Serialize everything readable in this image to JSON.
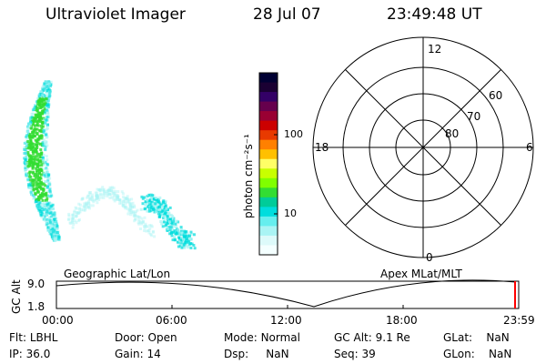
{
  "header": {
    "instrument": "Ultraviolet Imager",
    "date": "28 Jul 07",
    "time": "23:49:48 UT"
  },
  "colorbar": {
    "unit_label": "photon cm⁻²s⁻¹",
    "ticks": [
      "100",
      "10"
    ],
    "colors": [
      "#000033",
      "#1a0033",
      "#330066",
      "#66004d",
      "#990033",
      "#cc0000",
      "#e83a00",
      "#ff8000",
      "#ffc000",
      "#ffff66",
      "#c8ff00",
      "#80ff00",
      "#33dd33",
      "#00cc99",
      "#00dddd",
      "#66eeee",
      "#aaf4f4",
      "#ddfafa",
      "#f4ffff"
    ]
  },
  "polar_plot": {
    "mlt_labels": {
      "top": "12",
      "left": "18",
      "right": "6",
      "bottom": "0"
    },
    "lat_labels": [
      "60",
      "70",
      "80"
    ]
  },
  "orbit_panel": {
    "left_title": "Geographic Lat/Lon",
    "right_title": "Apex MLat/MLT",
    "y_label": "GC Alt",
    "y_ticks": [
      "9.0",
      "1.8"
    ],
    "x_ticks": [
      "00:00",
      "06:00",
      "12:00",
      "18:00",
      "23:59"
    ]
  },
  "status": {
    "row1": [
      {
        "label": "Flt:",
        "value": "LBHL"
      },
      {
        "label": "Door:",
        "value": "Open"
      },
      {
        "label": "Mode:",
        "value": "Normal"
      },
      {
        "label": "GC Alt:",
        "value": "9.1 Re"
      },
      {
        "label": "GLat:",
        "value": "NaN"
      }
    ],
    "row2": [
      {
        "label": "IP:",
        "value": "36.0"
      },
      {
        "label": "Gain:",
        "value": "14"
      },
      {
        "label": "Dsp:",
        "value": "NaN"
      },
      {
        "label": "Seq:",
        "value": "39"
      },
      {
        "label": "GLon:",
        "value": "NaN"
      }
    ]
  },
  "colors": {
    "aurora_bright": "#33dd33",
    "aurora_mid": "#00dddd",
    "aurora_faint": "#aaf4f4",
    "marker": "#ff0000"
  }
}
